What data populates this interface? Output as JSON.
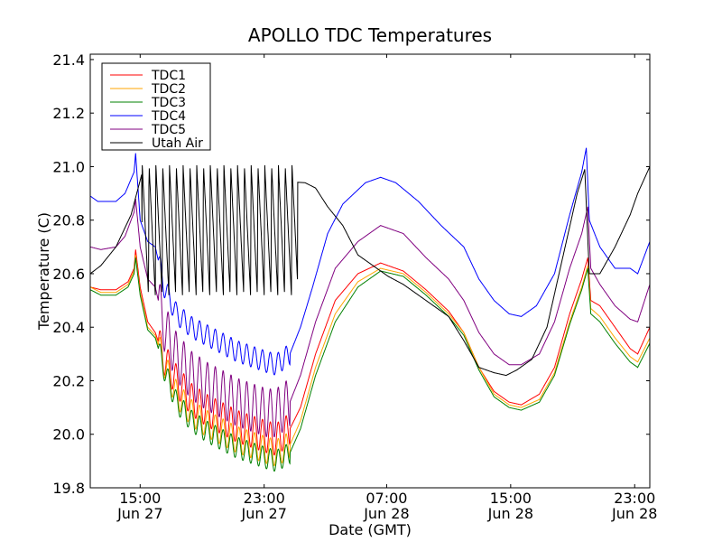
{
  "chart_data": {
    "type": "line",
    "title": "APOLLO TDC Temperatures",
    "xlabel": "Date (GMT)",
    "ylabel": "Temperature (C)",
    "xlim": [
      10.3,
      47.3
    ],
    "ylim": [
      19.8,
      21.42
    ],
    "grid": false,
    "legend_position": "top-left",
    "x_ticks": [
      {
        "x": 13.6,
        "line1": "15:00",
        "line2": "Jun 27"
      },
      {
        "x": 21.8,
        "line1": "23:00",
        "line2": "Jun 27"
      },
      {
        "x": 29.9,
        "line1": "07:00",
        "line2": "Jun 28"
      },
      {
        "x": 38.1,
        "line1": "15:00",
        "line2": "Jun 28"
      },
      {
        "x": 46.3,
        "line1": "23:00",
        "line2": "Jun 28"
      }
    ],
    "y_ticks": [
      {
        "v": 19.8,
        "label": "19.8"
      },
      {
        "v": 20.0,
        "label": "20.0"
      },
      {
        "v": 20.2,
        "label": "20.2"
      },
      {
        "v": 20.4,
        "label": "20.4"
      },
      {
        "v": 20.6,
        "label": "20.6"
      },
      {
        "v": 20.8,
        "label": "20.8"
      },
      {
        "v": 21.0,
        "label": "21.0"
      },
      {
        "v": 21.2,
        "label": "21.2"
      },
      {
        "v": 21.4,
        "label": "21.4"
      }
    ],
    "series": [
      {
        "name": "TDC1",
        "color": "#ff0000",
        "osc": {
          "from": 14.8,
          "to": 23.5,
          "period": 0.52,
          "amp": 0.06
        },
        "points": [
          [
            10.3,
            20.55
          ],
          [
            11.0,
            20.54
          ],
          [
            12.0,
            20.54
          ],
          [
            12.8,
            20.57
          ],
          [
            13.2,
            20.62
          ],
          [
            13.3,
            20.69
          ],
          [
            13.6,
            20.55
          ],
          [
            14.1,
            20.42
          ],
          [
            14.6,
            20.38
          ],
          [
            15.2,
            20.28
          ],
          [
            16.0,
            20.2
          ],
          [
            17.0,
            20.13
          ],
          [
            18.0,
            20.09
          ],
          [
            19.0,
            20.06
          ],
          [
            20.0,
            20.03
          ],
          [
            21.0,
            20.01
          ],
          [
            22.0,
            19.99
          ],
          [
            22.6,
            19.98
          ],
          [
            23.5,
            20.02
          ],
          [
            24.2,
            20.1
          ],
          [
            25.2,
            20.3
          ],
          [
            26.5,
            20.5
          ],
          [
            28.0,
            20.6
          ],
          [
            29.5,
            20.64
          ],
          [
            31.0,
            20.61
          ],
          [
            32.5,
            20.54
          ],
          [
            34.0,
            20.46
          ],
          [
            35.0,
            20.38
          ],
          [
            36.0,
            20.25
          ],
          [
            37.0,
            20.16
          ],
          [
            38.0,
            20.12
          ],
          [
            38.8,
            20.11
          ],
          [
            40.0,
            20.15
          ],
          [
            41.0,
            20.25
          ],
          [
            42.0,
            20.45
          ],
          [
            42.8,
            20.58
          ],
          [
            43.2,
            20.66
          ],
          [
            43.4,
            20.5
          ],
          [
            44.0,
            20.48
          ],
          [
            45.0,
            20.4
          ],
          [
            46.0,
            20.32
          ],
          [
            46.5,
            20.3
          ],
          [
            47.3,
            20.4
          ]
        ]
      },
      {
        "name": "TDC2",
        "color": "#ffa500",
        "osc": {
          "from": 14.8,
          "to": 23.5,
          "period": 0.52,
          "amp": 0.05
        },
        "points": [
          [
            10.3,
            20.55
          ],
          [
            11.0,
            20.53
          ],
          [
            12.0,
            20.53
          ],
          [
            12.8,
            20.56
          ],
          [
            13.2,
            20.61
          ],
          [
            13.3,
            20.67
          ],
          [
            13.6,
            20.53
          ],
          [
            14.1,
            20.4
          ],
          [
            14.6,
            20.37
          ],
          [
            15.2,
            20.26
          ],
          [
            16.0,
            20.15
          ],
          [
            17.0,
            20.08
          ],
          [
            18.0,
            20.04
          ],
          [
            19.0,
            20.01
          ],
          [
            20.0,
            19.98
          ],
          [
            21.0,
            19.96
          ],
          [
            22.0,
            19.94
          ],
          [
            22.6,
            19.93
          ],
          [
            23.5,
            19.96
          ],
          [
            24.2,
            20.05
          ],
          [
            25.2,
            20.25
          ],
          [
            26.5,
            20.45
          ],
          [
            28.0,
            20.57
          ],
          [
            29.5,
            20.62
          ],
          [
            31.0,
            20.6
          ],
          [
            32.5,
            20.53
          ],
          [
            34.0,
            20.45
          ],
          [
            35.0,
            20.38
          ],
          [
            36.0,
            20.25
          ],
          [
            37.0,
            20.15
          ],
          [
            38.0,
            20.11
          ],
          [
            38.8,
            20.1
          ],
          [
            40.0,
            20.13
          ],
          [
            41.0,
            20.23
          ],
          [
            42.0,
            20.42
          ],
          [
            42.8,
            20.55
          ],
          [
            43.2,
            20.63
          ],
          [
            43.4,
            20.47
          ],
          [
            44.0,
            20.44
          ],
          [
            45.0,
            20.36
          ],
          [
            46.0,
            20.29
          ],
          [
            46.5,
            20.27
          ],
          [
            47.3,
            20.36
          ]
        ]
      },
      {
        "name": "TDC3",
        "color": "#008000",
        "osc": {
          "from": 14.8,
          "to": 23.5,
          "period": 0.52,
          "amp": 0.04
        },
        "points": [
          [
            10.3,
            20.54
          ],
          [
            11.0,
            20.52
          ],
          [
            12.0,
            20.52
          ],
          [
            12.8,
            20.55
          ],
          [
            13.2,
            20.6
          ],
          [
            13.3,
            20.66
          ],
          [
            13.6,
            20.52
          ],
          [
            14.1,
            20.39
          ],
          [
            14.6,
            20.36
          ],
          [
            15.2,
            20.24
          ],
          [
            16.0,
            20.12
          ],
          [
            17.0,
            20.05
          ],
          [
            18.0,
            20.01
          ],
          [
            19.0,
            19.98
          ],
          [
            20.0,
            19.95
          ],
          [
            21.0,
            19.93
          ],
          [
            22.0,
            19.91
          ],
          [
            22.6,
            19.9
          ],
          [
            23.5,
            19.93
          ],
          [
            24.2,
            20.02
          ],
          [
            25.2,
            20.22
          ],
          [
            26.5,
            20.42
          ],
          [
            28.0,
            20.55
          ],
          [
            29.5,
            20.61
          ],
          [
            31.0,
            20.59
          ],
          [
            32.5,
            20.52
          ],
          [
            34.0,
            20.44
          ],
          [
            35.0,
            20.37
          ],
          [
            36.0,
            20.24
          ],
          [
            37.0,
            20.14
          ],
          [
            38.0,
            20.1
          ],
          [
            38.8,
            20.09
          ],
          [
            40.0,
            20.12
          ],
          [
            41.0,
            20.22
          ],
          [
            42.0,
            20.41
          ],
          [
            42.8,
            20.54
          ],
          [
            43.2,
            20.62
          ],
          [
            43.4,
            20.45
          ],
          [
            44.0,
            20.42
          ],
          [
            45.0,
            20.34
          ],
          [
            46.0,
            20.27
          ],
          [
            46.5,
            20.25
          ],
          [
            47.3,
            20.34
          ]
        ]
      },
      {
        "name": "TDC4",
        "color": "#0000ff",
        "osc": {
          "from": 14.8,
          "to": 23.5,
          "period": 0.52,
          "amp": 0.04
        },
        "points": [
          [
            10.3,
            20.89
          ],
          [
            10.8,
            20.87
          ],
          [
            12.0,
            20.87
          ],
          [
            12.6,
            20.9
          ],
          [
            13.2,
            20.98
          ],
          [
            13.3,
            21.05
          ],
          [
            13.6,
            20.8
          ],
          [
            14.1,
            20.72
          ],
          [
            14.6,
            20.7
          ],
          [
            15.2,
            20.55
          ],
          [
            16.0,
            20.45
          ],
          [
            17.0,
            20.4
          ],
          [
            18.0,
            20.37
          ],
          [
            19.0,
            20.34
          ],
          [
            20.0,
            20.31
          ],
          [
            21.0,
            20.29
          ],
          [
            22.0,
            20.27
          ],
          [
            22.6,
            20.26
          ],
          [
            23.5,
            20.3
          ],
          [
            24.2,
            20.4
          ],
          [
            25.0,
            20.55
          ],
          [
            26.0,
            20.75
          ],
          [
            27.0,
            20.86
          ],
          [
            28.5,
            20.94
          ],
          [
            29.5,
            20.96
          ],
          [
            30.5,
            20.94
          ],
          [
            32.0,
            20.87
          ],
          [
            33.5,
            20.78
          ],
          [
            35.0,
            20.7
          ],
          [
            36.0,
            20.58
          ],
          [
            37.0,
            20.5
          ],
          [
            38.0,
            20.45
          ],
          [
            38.8,
            20.44
          ],
          [
            39.8,
            20.48
          ],
          [
            41.0,
            20.6
          ],
          [
            42.0,
            20.82
          ],
          [
            42.8,
            20.98
          ],
          [
            43.1,
            21.07
          ],
          [
            43.3,
            20.8
          ],
          [
            44.0,
            20.7
          ],
          [
            45.0,
            20.62
          ],
          [
            46.0,
            20.62
          ],
          [
            46.5,
            20.6
          ],
          [
            47.3,
            20.72
          ]
        ]
      },
      {
        "name": "TDC5",
        "color": "#800080",
        "osc": {
          "from": 14.8,
          "to": 23.5,
          "period": 0.52,
          "amp": 0.09
        },
        "points": [
          [
            10.3,
            20.7
          ],
          [
            11.0,
            20.69
          ],
          [
            12.0,
            20.7
          ],
          [
            12.6,
            20.74
          ],
          [
            13.2,
            20.83
          ],
          [
            13.3,
            20.88
          ],
          [
            13.6,
            20.7
          ],
          [
            14.1,
            20.58
          ],
          [
            14.6,
            20.55
          ],
          [
            15.2,
            20.4
          ],
          [
            16.0,
            20.29
          ],
          [
            17.0,
            20.22
          ],
          [
            18.0,
            20.18
          ],
          [
            19.0,
            20.15
          ],
          [
            20.0,
            20.12
          ],
          [
            21.0,
            20.1
          ],
          [
            22.0,
            20.08
          ],
          [
            22.6,
            20.08
          ],
          [
            23.5,
            20.12
          ],
          [
            24.2,
            20.22
          ],
          [
            25.2,
            20.42
          ],
          [
            26.5,
            20.62
          ],
          [
            28.0,
            20.72
          ],
          [
            29.5,
            20.78
          ],
          [
            31.0,
            20.75
          ],
          [
            32.5,
            20.66
          ],
          [
            34.0,
            20.58
          ],
          [
            35.0,
            20.5
          ],
          [
            36.0,
            20.38
          ],
          [
            37.0,
            20.3
          ],
          [
            38.0,
            20.26
          ],
          [
            38.8,
            20.26
          ],
          [
            40.0,
            20.3
          ],
          [
            41.0,
            20.42
          ],
          [
            42.0,
            20.62
          ],
          [
            42.8,
            20.75
          ],
          [
            43.2,
            20.85
          ],
          [
            43.4,
            20.62
          ],
          [
            44.0,
            20.56
          ],
          [
            45.0,
            20.48
          ],
          [
            46.0,
            20.43
          ],
          [
            46.5,
            20.42
          ],
          [
            47.3,
            20.56
          ]
        ]
      },
      {
        "name": "Utah Air",
        "color": "#000000",
        "saw": {
          "from": 13.7,
          "to": 24.0,
          "period": 0.45,
          "top": 21.01,
          "bottom": 20.52
        },
        "points": [
          [
            10.3,
            20.6
          ],
          [
            11.0,
            20.63
          ],
          [
            12.0,
            20.7
          ],
          [
            13.0,
            20.82
          ],
          [
            13.7,
            20.97
          ],
          [
            24.5,
            20.94
          ],
          [
            25.2,
            20.92
          ],
          [
            26.0,
            20.85
          ],
          [
            27.0,
            20.78
          ],
          [
            28.0,
            20.67
          ],
          [
            29.0,
            20.63
          ],
          [
            30.0,
            20.59
          ],
          [
            31.0,
            20.56
          ],
          [
            32.5,
            20.5
          ],
          [
            34.0,
            20.44
          ],
          [
            35.0,
            20.35
          ],
          [
            36.0,
            20.25
          ],
          [
            37.0,
            20.23
          ],
          [
            37.8,
            20.22
          ],
          [
            38.5,
            20.24
          ],
          [
            39.5,
            20.28
          ],
          [
            40.5,
            20.4
          ],
          [
            41.5,
            20.65
          ],
          [
            42.5,
            20.9
          ],
          [
            43.0,
            20.99
          ],
          [
            43.3,
            20.6
          ],
          [
            44.0,
            20.6
          ],
          [
            45.0,
            20.7
          ],
          [
            46.0,
            20.82
          ],
          [
            46.5,
            20.9
          ],
          [
            47.3,
            21.0
          ]
        ]
      }
    ]
  }
}
